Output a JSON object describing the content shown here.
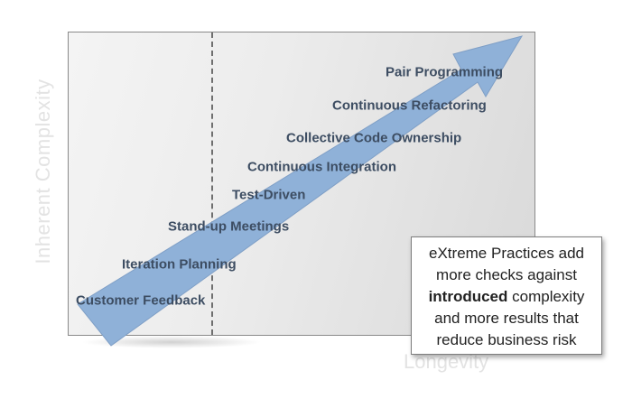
{
  "axes": {
    "y_label": "Inherent Complexity",
    "x_label": "Longevity"
  },
  "practices": [
    "Customer Feedback",
    "Iteration Planning",
    "Stand-up Meetings",
    "Test-Driven",
    "Continuous Integration",
    "Collective Code Ownership",
    "Continuous Refactoring",
    "Pair Programming"
  ],
  "callout": {
    "line1": "eXtreme Practices add",
    "line2": "more checks against",
    "line3_bold": "introduced",
    "line3_rest": " complexity",
    "line4": "and more results that",
    "line5": "reduce business risk"
  },
  "colors": {
    "arrow": "#8fb1d8",
    "label_text": "#3d4d62",
    "axis_text": "#e3e3e3"
  }
}
